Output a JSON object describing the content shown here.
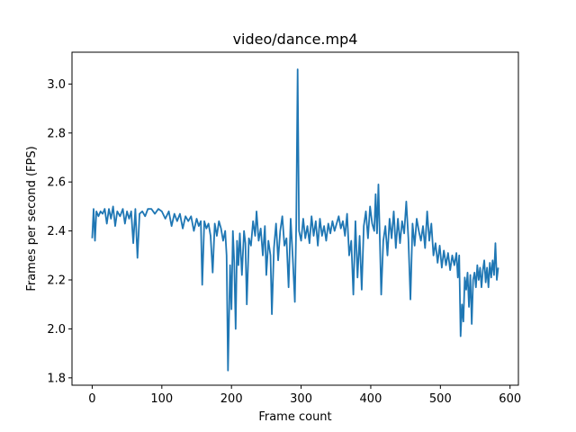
{
  "chart_data": {
    "type": "line",
    "title": "video/dance.mp4",
    "xlabel": "Frame count",
    "ylabel": "Frames per second (FPS)",
    "xlim": [
      -29,
      612
    ],
    "ylim": [
      1.77,
      3.13
    ],
    "xticks": [
      0,
      100,
      200,
      300,
      400,
      500,
      600
    ],
    "yticks": [
      1.8,
      2.0,
      2.2,
      2.4,
      2.6,
      2.8,
      3.0
    ],
    "grid": false,
    "series": [
      {
        "color": "#1f77b4",
        "points": [
          [
            0,
            2.37
          ],
          [
            2,
            2.49
          ],
          [
            4,
            2.36
          ],
          [
            6,
            2.48
          ],
          [
            9,
            2.46
          ],
          [
            12,
            2.48
          ],
          [
            15,
            2.47
          ],
          [
            18,
            2.49
          ],
          [
            21,
            2.43
          ],
          [
            24,
            2.49
          ],
          [
            27,
            2.45
          ],
          [
            30,
            2.5
          ],
          [
            33,
            2.42
          ],
          [
            36,
            2.48
          ],
          [
            40,
            2.46
          ],
          [
            44,
            2.49
          ],
          [
            47,
            2.43
          ],
          [
            50,
            2.48
          ],
          [
            53,
            2.45
          ],
          [
            56,
            2.48
          ],
          [
            59,
            2.35
          ],
          [
            62,
            2.49
          ],
          [
            65,
            2.29
          ],
          [
            68,
            2.47
          ],
          [
            72,
            2.48
          ],
          [
            76,
            2.46
          ],
          [
            80,
            2.49
          ],
          [
            85,
            2.49
          ],
          [
            90,
            2.47
          ],
          [
            95,
            2.49
          ],
          [
            100,
            2.48
          ],
          [
            105,
            2.45
          ],
          [
            110,
            2.48
          ],
          [
            114,
            2.42
          ],
          [
            118,
            2.47
          ],
          [
            122,
            2.44
          ],
          [
            126,
            2.47
          ],
          [
            130,
            2.41
          ],
          [
            134,
            2.46
          ],
          [
            138,
            2.44
          ],
          [
            142,
            2.46
          ],
          [
            146,
            2.4
          ],
          [
            150,
            2.45
          ],
          [
            153,
            2.42
          ],
          [
            156,
            2.44
          ],
          [
            158,
            2.18
          ],
          [
            161,
            2.44
          ],
          [
            164,
            2.41
          ],
          [
            167,
            2.43
          ],
          [
            170,
            2.38
          ],
          [
            173,
            2.23
          ],
          [
            176,
            2.43
          ],
          [
            179,
            2.38
          ],
          [
            182,
            2.44
          ],
          [
            185,
            2.41
          ],
          [
            188,
            2.36
          ],
          [
            191,
            2.4
          ],
          [
            193,
            2.3
          ],
          [
            195,
            1.83
          ],
          [
            198,
            2.26
          ],
          [
            200,
            2.08
          ],
          [
            202,
            2.4
          ],
          [
            204,
            2.27
          ],
          [
            206,
            2.0
          ],
          [
            208,
            2.36
          ],
          [
            210,
            2.26
          ],
          [
            212,
            2.39
          ],
          [
            215,
            2.22
          ],
          [
            218,
            2.4
          ],
          [
            220,
            2.35
          ],
          [
            222,
            2.1
          ],
          [
            225,
            2.37
          ],
          [
            228,
            2.34
          ],
          [
            231,
            2.44
          ],
          [
            234,
            2.38
          ],
          [
            236,
            2.48
          ],
          [
            239,
            2.36
          ],
          [
            242,
            2.41
          ],
          [
            245,
            2.3
          ],
          [
            248,
            2.42
          ],
          [
            250,
            2.22
          ],
          [
            253,
            2.36
          ],
          [
            256,
            2.3
          ],
          [
            258,
            2.06
          ],
          [
            261,
            2.33
          ],
          [
            264,
            2.43
          ],
          [
            267,
            2.28
          ],
          [
            270,
            2.4
          ],
          [
            273,
            2.46
          ],
          [
            276,
            2.34
          ],
          [
            279,
            2.37
          ],
          [
            282,
            2.17
          ],
          [
            285,
            2.45
          ],
          [
            288,
            2.29
          ],
          [
            291,
            2.11
          ],
          [
            293,
            2.43
          ],
          [
            295,
            3.06
          ],
          [
            297,
            2.4
          ],
          [
            300,
            2.36
          ],
          [
            303,
            2.45
          ],
          [
            306,
            2.37
          ],
          [
            309,
            2.42
          ],
          [
            312,
            2.35
          ],
          [
            315,
            2.46
          ],
          [
            318,
            2.38
          ],
          [
            321,
            2.44
          ],
          [
            324,
            2.34
          ],
          [
            327,
            2.45
          ],
          [
            330,
            2.38
          ],
          [
            333,
            2.42
          ],
          [
            336,
            2.36
          ],
          [
            339,
            2.43
          ],
          [
            342,
            2.39
          ],
          [
            345,
            2.44
          ],
          [
            348,
            2.4
          ],
          [
            351,
            2.43
          ],
          [
            354,
            2.46
          ],
          [
            357,
            2.41
          ],
          [
            360,
            2.44
          ],
          [
            363,
            2.38
          ],
          [
            366,
            2.47
          ],
          [
            369,
            2.3
          ],
          [
            372,
            2.36
          ],
          [
            375,
            2.14
          ],
          [
            378,
            2.44
          ],
          [
            381,
            2.21
          ],
          [
            384,
            2.38
          ],
          [
            387,
            2.16
          ],
          [
            390,
            2.42
          ],
          [
            393,
            2.48
          ],
          [
            396,
            2.37
          ],
          [
            399,
            2.5
          ],
          [
            402,
            2.43
          ],
          [
            405,
            2.4
          ],
          [
            407,
            2.55
          ],
          [
            409,
            2.39
          ],
          [
            411,
            2.59
          ],
          [
            413,
            2.37
          ],
          [
            415,
            2.14
          ],
          [
            418,
            2.36
          ],
          [
            421,
            2.42
          ],
          [
            424,
            2.3
          ],
          [
            427,
            2.45
          ],
          [
            430,
            2.37
          ],
          [
            433,
            2.48
          ],
          [
            436,
            2.33
          ],
          [
            439,
            2.45
          ],
          [
            442,
            2.35
          ],
          [
            445,
            2.44
          ],
          [
            448,
            2.39
          ],
          [
            451,
            2.52
          ],
          [
            454,
            2.37
          ],
          [
            457,
            2.12
          ],
          [
            460,
            2.43
          ],
          [
            463,
            2.34
          ],
          [
            466,
            2.45
          ],
          [
            469,
            2.4
          ],
          [
            472,
            2.36
          ],
          [
            475,
            2.42
          ],
          [
            478,
            2.33
          ],
          [
            481,
            2.48
          ],
          [
            484,
            2.36
          ],
          [
            487,
            2.43
          ],
          [
            490,
            2.3
          ],
          [
            493,
            2.35
          ],
          [
            496,
            2.27
          ],
          [
            499,
            2.34
          ],
          [
            502,
            2.25
          ],
          [
            505,
            2.32
          ],
          [
            508,
            2.26
          ],
          [
            511,
            2.31
          ],
          [
            514,
            2.24
          ],
          [
            517,
            2.3
          ],
          [
            520,
            2.26
          ],
          [
            523,
            2.31
          ],
          [
            525,
            2.21
          ],
          [
            527,
            2.3
          ],
          [
            529,
            1.97
          ],
          [
            531,
            2.1
          ],
          [
            533,
            2.03
          ],
          [
            535,
            2.21
          ],
          [
            537,
            2.16
          ],
          [
            539,
            2.23
          ],
          [
            541,
            2.09
          ],
          [
            543,
            2.22
          ],
          [
            545,
            2.02
          ],
          [
            547,
            2.2
          ],
          [
            549,
            2.23
          ],
          [
            551,
            2.17
          ],
          [
            553,
            2.26
          ],
          [
            555,
            2.2
          ],
          [
            557,
            2.25
          ],
          [
            559,
            2.17
          ],
          [
            561,
            2.24
          ],
          [
            563,
            2.28
          ],
          [
            565,
            2.19
          ],
          [
            567,
            2.25
          ],
          [
            569,
            2.17
          ],
          [
            571,
            2.27
          ],
          [
            573,
            2.21
          ],
          [
            575,
            2.28
          ],
          [
            577,
            2.22
          ],
          [
            579,
            2.35
          ],
          [
            581,
            2.2
          ],
          [
            583,
            2.25
          ]
        ]
      }
    ]
  }
}
